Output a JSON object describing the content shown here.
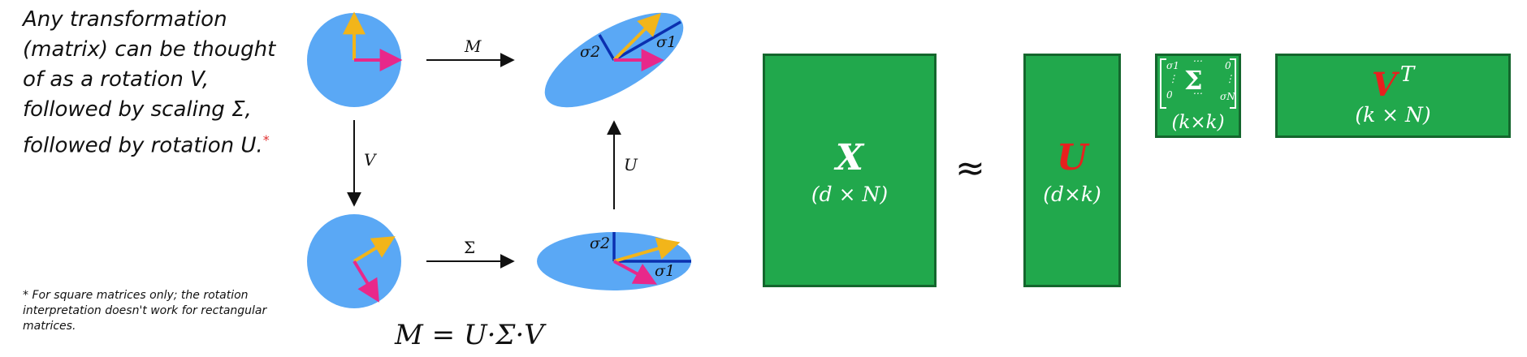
{
  "left": {
    "intro_lines": [
      "Any transformation",
      "(matrix) can be thought",
      "of as a rotation V,",
      "followed by scaling Σ,",
      "followed by rotation U."
    ],
    "intro_marker": "*",
    "footnote": "* For square matrices only; the rotation interpretation doesn't work for rectangular matrices.",
    "formula": {
      "lhs": "M",
      "eq": "=",
      "rhs": "U·Σ·V"
    }
  },
  "diagram": {
    "arrow_labels": {
      "top": "M",
      "left": "V",
      "bottom": "Σ",
      "right": "U"
    },
    "sigma1": "σ1",
    "sigma2": "σ2",
    "colors": {
      "shape_fill": "#5aa8f5",
      "vector_yellow": "#f2b51a",
      "vector_magenta": "#e8288a",
      "axis_blue": "#0b30b0"
    }
  },
  "svd": {
    "approx": "≈",
    "X": {
      "symbol": "X",
      "dims": "(d × N)"
    },
    "U": {
      "symbol": "U",
      "dims": "(d×k)"
    },
    "Sigma": {
      "matrix_top_left": "σ1",
      "matrix_top_mid": "⋯",
      "matrix_top_right": "0",
      "matrix_mid_left": "⋮",
      "matrix_center": "Σ",
      "matrix_mid_right": "⋮",
      "matrix_bottom_left": "0",
      "matrix_bottom_mid": "⋯",
      "matrix_bottom_right": "σN",
      "dims": "(k×k)"
    },
    "V": {
      "symbol": "V",
      "superscript": "T",
      "dims": "(k × N)"
    },
    "colors": {
      "box_fill": "#21a84c",
      "box_border": "#14662d",
      "highlight_red": "#e8201e"
    }
  }
}
